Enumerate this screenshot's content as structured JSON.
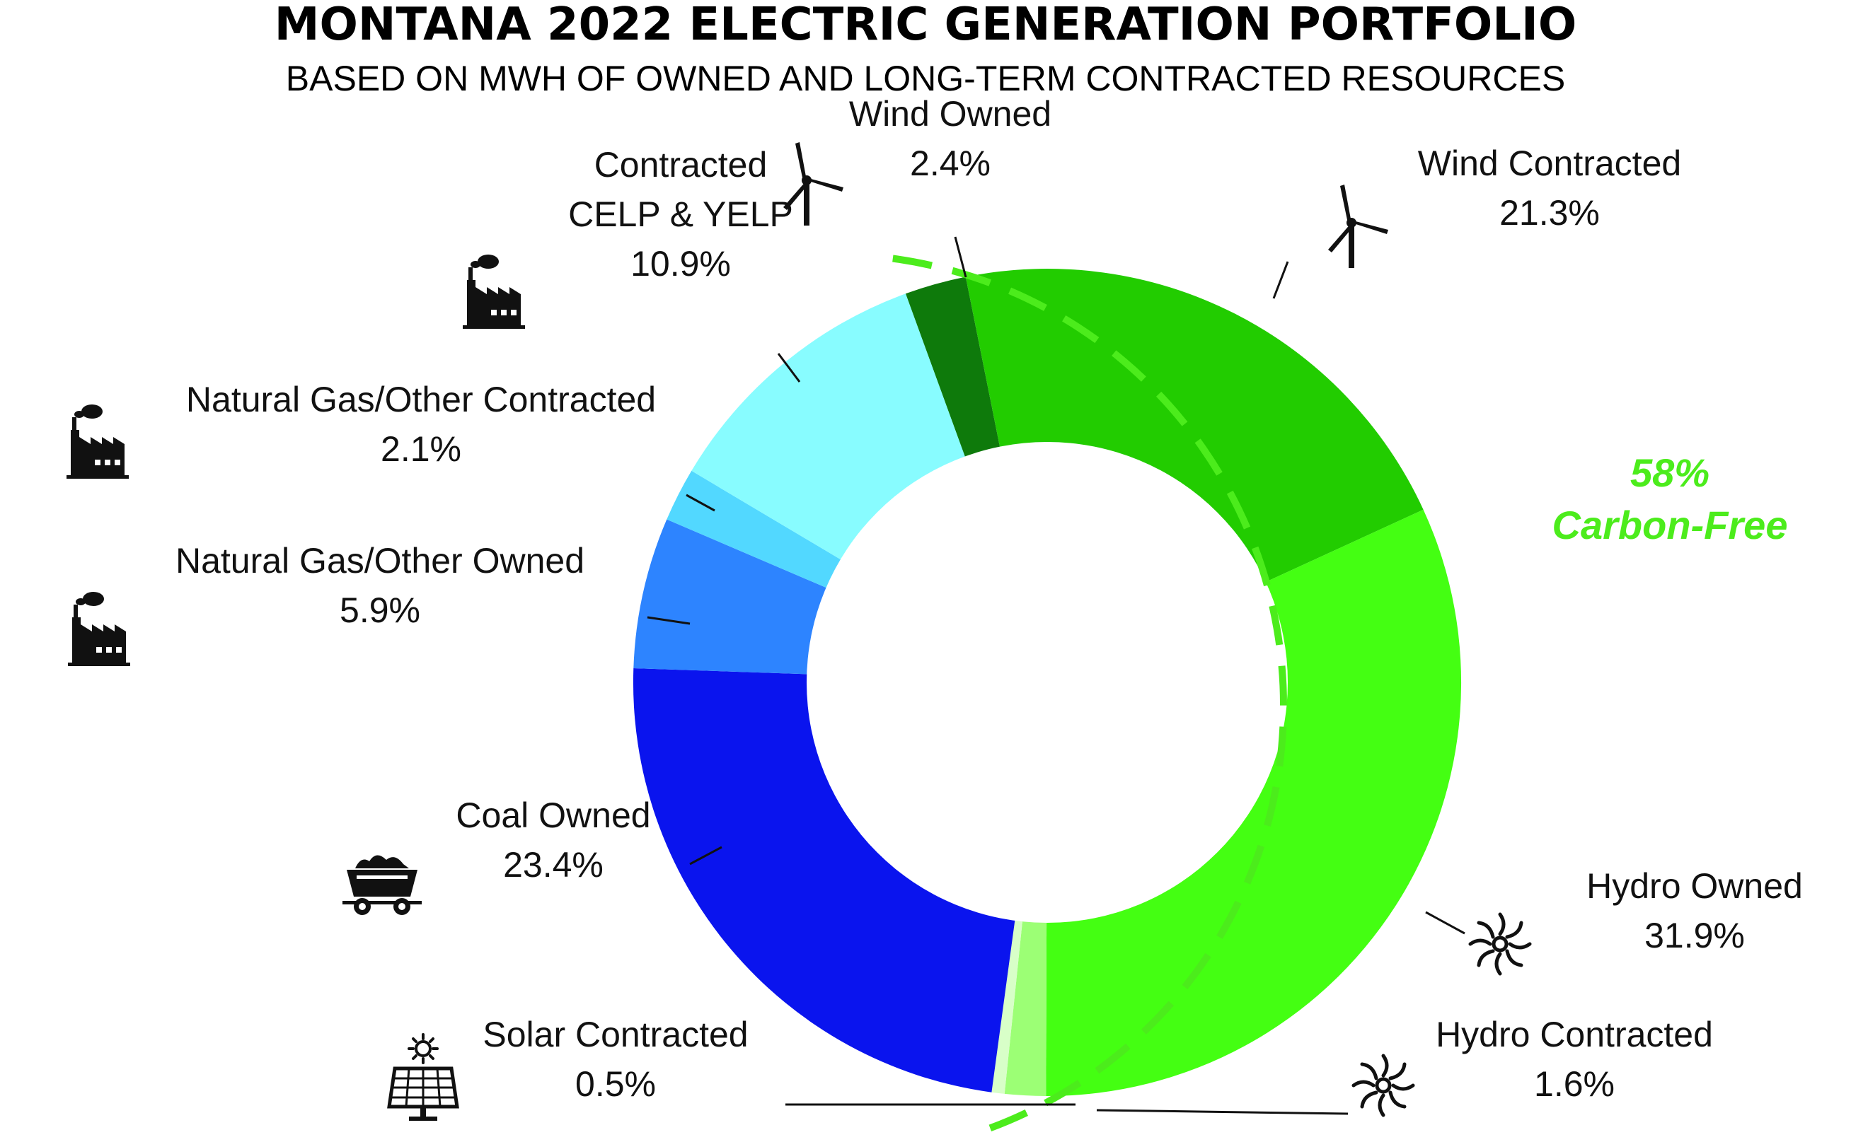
{
  "chart_data": {
    "type": "pie",
    "title": "MONTANA 2022 ELECTRIC GENERATION PORTFOLIO",
    "subtitle": "BASED ON MWH OF OWNED AND LONG-TERM CONTRACTED RESOURCES",
    "annotation": {
      "line1": "58%",
      "line2": "Carbon-Free",
      "color": "#4cec1c"
    },
    "slices": [
      {
        "label_lines": [
          "Wind Owned"
        ],
        "value": 2.4,
        "display": "2.4%",
        "color": "#0e7a0b",
        "icon": "wind-turbine-icon"
      },
      {
        "label_lines": [
          "Wind Contracted"
        ],
        "value": 21.3,
        "display": "21.3%",
        "color": "#22cc00",
        "icon": "wind-turbine-icon"
      },
      {
        "label_lines": [
          "Hydro Owned"
        ],
        "value": 31.9,
        "display": "31.9%",
        "color": "#44ff12",
        "icon": "hydro-turbine-icon"
      },
      {
        "label_lines": [
          "Hydro Contracted"
        ],
        "value": 1.6,
        "display": "1.6%",
        "color": "#9cff75",
        "icon": "hydro-turbine-icon"
      },
      {
        "label_lines": [
          "Solar Contracted"
        ],
        "value": 0.5,
        "display": "0.5%",
        "color": "#d8ffc8",
        "icon": "solar-panel-icon"
      },
      {
        "label_lines": [
          "Coal Owned"
        ],
        "value": 23.4,
        "display": "23.4%",
        "color": "#0a14ee",
        "icon": "coal-cart-icon"
      },
      {
        "label_lines": [
          "Natural Gas/Other Owned"
        ],
        "value": 5.9,
        "display": "5.9%",
        "color": "#2d84ff",
        "icon": "factory-icon"
      },
      {
        "label_lines": [
          "Natural Gas/Other Contracted"
        ],
        "value": 2.1,
        "display": "2.1%",
        "color": "#52d8ff",
        "icon": "factory-icon"
      },
      {
        "label_lines": [
          "Contracted",
          "CELP & YELP"
        ],
        "value": 10.9,
        "display": "10.9%",
        "color": "#88fcff",
        "icon": "factory-icon"
      }
    ]
  }
}
